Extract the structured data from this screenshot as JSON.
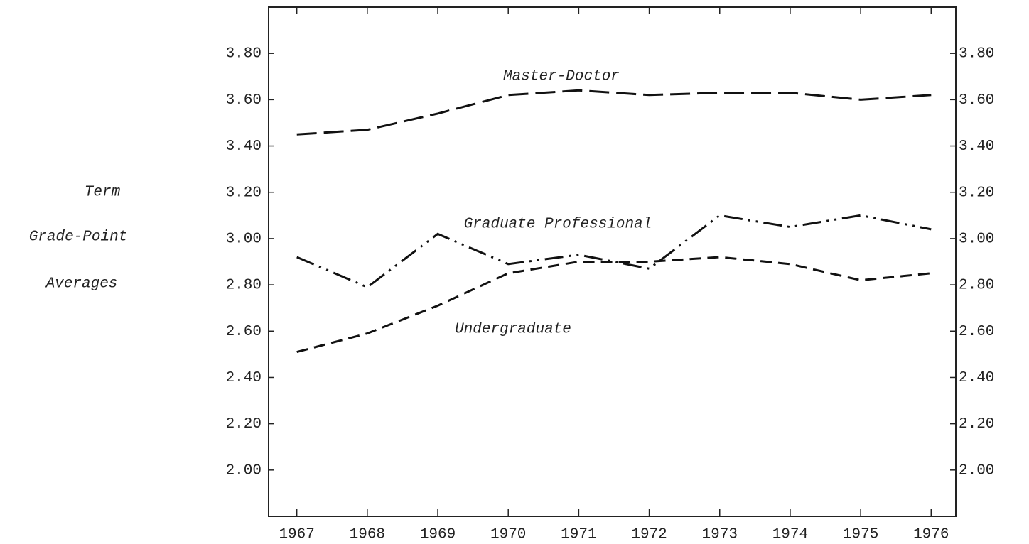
{
  "chart_data": {
    "type": "line",
    "y_label": [
      "Term",
      "Grade-Point",
      "Averages"
    ],
    "x": [
      1967,
      1968,
      1969,
      1970,
      1971,
      1972,
      1973,
      1974,
      1975,
      1976
    ],
    "xlim": [
      1966.6,
      1976.35
    ],
    "series": [
      {
        "name": "Master-Doctor",
        "color": "#111111",
        "dash": "long",
        "values": [
          3.45,
          3.47,
          3.54,
          3.62,
          3.64,
          3.62,
          3.63,
          3.63,
          3.6,
          3.62
        ]
      },
      {
        "name": "Graduate Professional",
        "color": "#111111",
        "dash": "dash-dot-dot",
        "values": [
          2.92,
          2.79,
          3.02,
          2.89,
          2.93,
          2.87,
          3.1,
          3.05,
          3.1,
          3.04
        ]
      },
      {
        "name": "Undergraduate",
        "color": "#111111",
        "dash": "medium",
        "values": [
          2.51,
          2.59,
          2.71,
          2.85,
          2.9,
          2.9,
          2.92,
          2.89,
          2.82,
          2.85
        ]
      }
    ],
    "ylim": [
      1.8,
      4.0
    ],
    "yticks": [
      {
        "value": 2.0,
        "label": "2.00"
      },
      {
        "value": 2.2,
        "label": "2.20"
      },
      {
        "value": 2.4,
        "label": "2.40"
      },
      {
        "value": 2.6,
        "label": "2.60"
      },
      {
        "value": 2.8,
        "label": "2.80"
      },
      {
        "value": 3.0,
        "label": "3.00"
      },
      {
        "value": 3.2,
        "label": "3.20"
      },
      {
        "value": 3.4,
        "label": "3.40"
      },
      {
        "value": 3.6,
        "label": "3.60"
      },
      {
        "value": 3.8,
        "label": "3.80"
      }
    ],
    "y2lim": [
      1.8,
      4.0
    ],
    "y2ticks": [
      {
        "value": 2.0,
        "label": "2.00"
      },
      {
        "value": 2.2,
        "label": "2.20"
      },
      {
        "value": 2.4,
        "label": "2.40"
      },
      {
        "value": 2.6,
        "label": "2.60"
      },
      {
        "value": 2.8,
        "label": "2.80"
      },
      {
        "value": 3.0,
        "label": "3.00"
      },
      {
        "value": 3.2,
        "label": "3.20"
      },
      {
        "value": 3.4,
        "label": "3.40"
      },
      {
        "value": 3.6,
        "label": "3.60"
      },
      {
        "value": 3.8,
        "label": "3.80"
      }
    ],
    "grid": false
  }
}
